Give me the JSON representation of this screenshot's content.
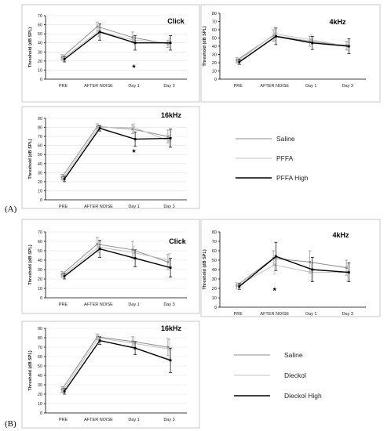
{
  "section_labels": [
    "(A)",
    "(B)"
  ],
  "chart_data": [
    {
      "id": "A-click",
      "group": "A",
      "type": "line",
      "title": "Click",
      "ylabel": "Threshold (dB SPL)",
      "ylim": [
        0,
        70
      ],
      "yticks": [
        0,
        10,
        20,
        30,
        40,
        50,
        60,
        70
      ],
      "categories": [
        "PRE",
        "AFTER NOISE",
        "Day 1",
        "Day 3"
      ],
      "grid": true,
      "annotations": [
        {
          "text": "*",
          "category": "Day 1",
          "y": 13
        }
      ],
      "series": [
        {
          "name": "Saline",
          "color": "#8c8c8c",
          "width": 1,
          "values": [
            24,
            58,
            46,
            39
          ],
          "err": [
            3,
            5,
            6,
            4
          ]
        },
        {
          "name": "PFFA",
          "color": "#c0c0c0",
          "width": 1,
          "values": [
            23,
            53,
            43,
            40
          ],
          "err": [
            3,
            6,
            5,
            5
          ]
        },
        {
          "name": "PFFA High",
          "color": "#000000",
          "width": 1.4,
          "values": [
            22,
            52,
            40,
            40
          ],
          "err": [
            3,
            9,
            8,
            8
          ]
        }
      ]
    },
    {
      "id": "A-4k",
      "group": "A",
      "type": "line",
      "title": "4kHz",
      "ylabel": "Threshold (dB SPL)",
      "ylim": [
        0,
        80
      ],
      "yticks": [
        0,
        10,
        20,
        30,
        40,
        50,
        60,
        70,
        80
      ],
      "categories": [
        "PRE",
        "AFTER NOISE",
        "Day 1",
        "Day 3"
      ],
      "grid": false,
      "annotations": [],
      "series": [
        {
          "name": "Saline",
          "color": "#8c8c8c",
          "width": 1,
          "values": [
            23,
            53,
            46,
            41
          ],
          "err": [
            3,
            7,
            6,
            5
          ]
        },
        {
          "name": "PFFA",
          "color": "#c0c0c0",
          "width": 1,
          "values": [
            22,
            55,
            48,
            40
          ],
          "err": [
            3,
            8,
            6,
            5
          ]
        },
        {
          "name": "PFFA High",
          "color": "#000000",
          "width": 1.4,
          "values": [
            21,
            52,
            44,
            40
          ],
          "err": [
            3,
            10,
            8,
            9
          ]
        }
      ]
    },
    {
      "id": "A-16k",
      "group": "A",
      "type": "line",
      "title": "16kHz",
      "ylabel": "Threshold (dB SPL)",
      "ylim": [
        0,
        90
      ],
      "yticks": [
        0,
        10,
        20,
        30,
        40,
        50,
        60,
        70,
        80,
        90
      ],
      "categories": [
        "PRE",
        "AFTER NOISE",
        "Day 1",
        "Day 3"
      ],
      "grid": true,
      "annotations": [
        {
          "text": "*",
          "category": "Day 1",
          "y": 53
        }
      ],
      "series": [
        {
          "name": "Saline",
          "color": "#8c8c8c",
          "width": 1,
          "values": [
            25,
            81,
            78,
            70
          ],
          "err": [
            3,
            3,
            5,
            7
          ]
        },
        {
          "name": "PFFA",
          "color": "#c0c0c0",
          "width": 1,
          "values": [
            24,
            80,
            80,
            65
          ],
          "err": [
            3,
            3,
            4,
            6
          ]
        },
        {
          "name": "PFFA High",
          "color": "#000000",
          "width": 1.4,
          "values": [
            23,
            79,
            67,
            68
          ],
          "err": [
            3,
            3,
            8,
            10
          ]
        }
      ]
    },
    {
      "id": "B-click",
      "group": "B",
      "type": "line",
      "title": "Click",
      "ylabel": "Threshold (dB SPL)",
      "ylim": [
        0,
        70
      ],
      "yticks": [
        0,
        10,
        20,
        30,
        40,
        50,
        60,
        70
      ],
      "categories": [
        "PRE",
        "AFTER NOISE",
        "Day 1",
        "Day 3"
      ],
      "grid": true,
      "annotations": [],
      "series": [
        {
          "name": "Saline",
          "color": "#8c8c8c",
          "width": 1,
          "values": [
            25,
            57,
            51,
            38
          ],
          "err": [
            3,
            7,
            9,
            8
          ]
        },
        {
          "name": "Dieckol",
          "color": "#c0c0c0",
          "width": 1,
          "values": [
            24,
            54,
            48,
            40
          ],
          "err": [
            3,
            6,
            7,
            7
          ]
        },
        {
          "name": "Dieckol High",
          "color": "#000000",
          "width": 1.4,
          "values": [
            23,
            52,
            42,
            32
          ],
          "err": [
            3,
            9,
            9,
            10
          ]
        }
      ]
    },
    {
      "id": "B-4k",
      "group": "B",
      "type": "line",
      "title": "4kHz",
      "ylabel": "Threshold (dB SPL)",
      "ylim": [
        0,
        80
      ],
      "yticks": [
        0,
        10,
        20,
        30,
        40,
        50,
        60,
        70,
        80
      ],
      "categories": [
        "PRE",
        "AFTER NOISE",
        "Day 1",
        "Day 3"
      ],
      "grid": false,
      "annotations": [
        {
          "text": "*",
          "category": "AFTER NOISE",
          "y": 18
        }
      ],
      "series": [
        {
          "name": "Saline",
          "color": "#8c8c8c",
          "width": 1,
          "values": [
            23,
            52,
            48,
            42
          ],
          "err": [
            3,
            8,
            12,
            8
          ]
        },
        {
          "name": "Dieckol",
          "color": "#c0c0c0",
          "width": 1,
          "values": [
            23,
            45,
            37,
            37
          ],
          "err": [
            3,
            10,
            9,
            9
          ]
        },
        {
          "name": "Dieckol High",
          "color": "#000000",
          "width": 1.4,
          "values": [
            22,
            54,
            40,
            37
          ],
          "err": [
            3,
            15,
            13,
            10
          ]
        }
      ]
    },
    {
      "id": "B-16k",
      "group": "B",
      "type": "line",
      "title": "16kHz",
      "ylabel": "Threshold (dB SPL)",
      "ylim": [
        0,
        90
      ],
      "yticks": [
        0,
        10,
        20,
        30,
        40,
        50,
        60,
        70,
        80,
        90
      ],
      "categories": [
        "PRE",
        "AFTER NOISE",
        "Day 1",
        "Day 3"
      ],
      "grid": true,
      "annotations": [],
      "series": [
        {
          "name": "Saline",
          "color": "#8c8c8c",
          "width": 1,
          "values": [
            25,
            81,
            76,
            70
          ],
          "err": [
            3,
            3,
            5,
            9
          ]
        },
        {
          "name": "Dieckol",
          "color": "#c0c0c0",
          "width": 1,
          "values": [
            24,
            80,
            74,
            68
          ],
          "err": [
            3,
            3,
            6,
            10
          ]
        },
        {
          "name": "Dieckol High",
          "color": "#000000",
          "width": 1.4,
          "values": [
            23,
            77,
            69,
            56
          ],
          "err": [
            3,
            4,
            7,
            13
          ]
        }
      ]
    }
  ],
  "legends": [
    {
      "group": "A",
      "entries": [
        {
          "label": "Saline",
          "color": "#8c8c8c",
          "width": 1
        },
        {
          "label": "PFFA",
          "color": "#c0c0c0",
          "width": 1
        },
        {
          "label": "PFFA High",
          "color": "#000000",
          "width": 1.6
        }
      ]
    },
    {
      "group": "B",
      "entries": [
        {
          "label": "Saline",
          "color": "#8c8c8c",
          "width": 1
        },
        {
          "label": "Dieckol",
          "color": "#c0c0c0",
          "width": 1
        },
        {
          "label": "Dieckol High",
          "color": "#000000",
          "width": 1.6
        }
      ]
    }
  ]
}
